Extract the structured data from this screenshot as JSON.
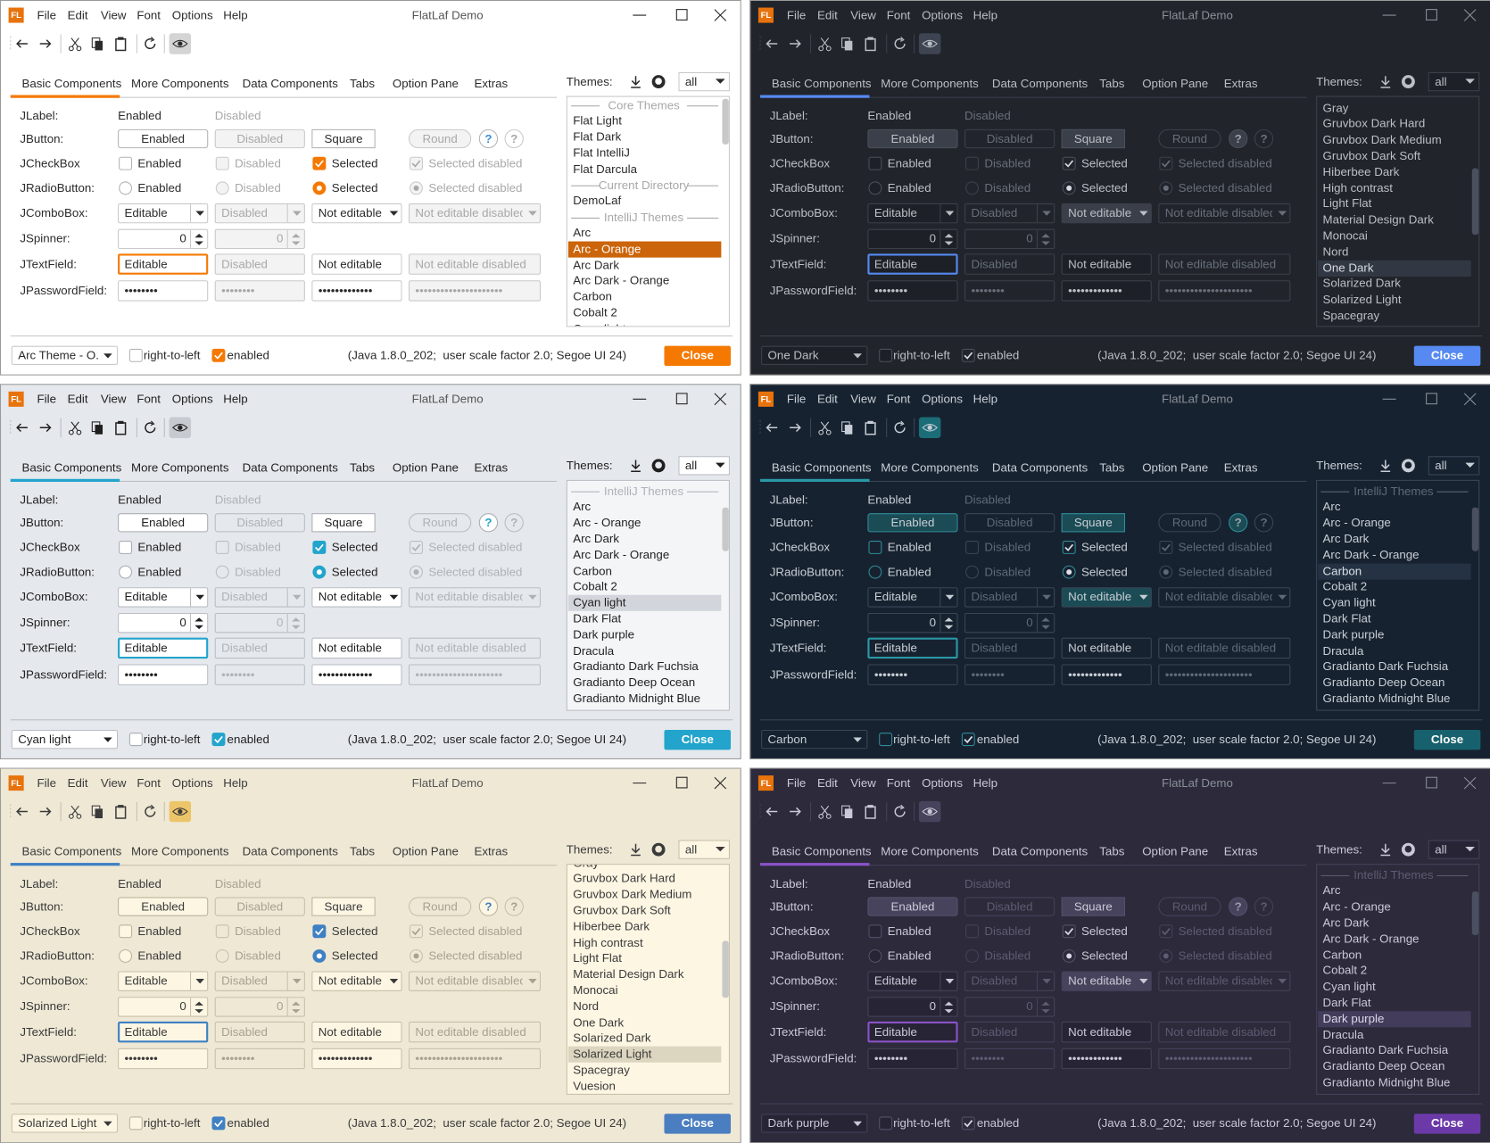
{
  "common": {
    "logo": "FL",
    "title": "FlatLaf Demo",
    "menu": [
      "File",
      "Edit",
      "View",
      "Font",
      "Options",
      "Help"
    ],
    "tabs": [
      "Basic Components",
      "More Components",
      "Data Components",
      "Tabs",
      "Option Pane",
      "Extras"
    ],
    "themes_label": "Themes:",
    "themes_filter": "all",
    "rows": [
      {
        "label": "JLabel:",
        "cells": [
          "Enabled",
          "Disabled"
        ]
      },
      {
        "label": "JButton:",
        "cells": [
          "Enabled",
          "Disabled",
          "Square",
          "Round",
          "?",
          "?"
        ]
      },
      {
        "label": "JCheckBox",
        "cells": [
          "Enabled",
          "Disabled",
          "Selected",
          "Selected disabled"
        ]
      },
      {
        "label": "JRadioButton:",
        "cells": [
          "Enabled",
          "Disabled",
          "Selected",
          "Selected disabled"
        ]
      },
      {
        "label": "JComboBox:",
        "cells": [
          "Editable",
          "Disabled",
          "Not editable",
          "Not editable disabled"
        ]
      },
      {
        "label": "JSpinner:",
        "cells": [
          0,
          0
        ]
      },
      {
        "label": "JTextField:",
        "cells": [
          "Editable",
          "Disabled",
          "Not editable",
          "Not editable disabled"
        ]
      },
      {
        "label": "JPasswordField:",
        "cells": [
          "••••••••",
          "••••••••",
          "•••••••••••••",
          "•••••••••••••••••••••"
        ]
      }
    ],
    "right_to_left": "right-to-left",
    "enabled": "enabled",
    "info": "(Java 1.8.0_202;  user scale factor 2.0; Segoe UI 24)",
    "close": "Close"
  },
  "windows": [
    {
      "theme": "Arc Theme - O...",
      "themes": [
        {
          "heading": "Core Themes"
        },
        {
          "name": "Flat Light"
        },
        {
          "name": "Flat Dark"
        },
        {
          "name": "Flat IntelliJ"
        },
        {
          "name": "Flat Darcula"
        },
        {
          "heading": "Current Directory"
        },
        {
          "name": "DemoLaf"
        },
        {
          "heading": "IntelliJ Themes"
        },
        {
          "name": "Arc"
        },
        {
          "name": "Arc - Orange",
          "selected": true
        },
        {
          "name": "Arc Dark"
        },
        {
          "name": "Arc Dark - Orange"
        },
        {
          "name": "Carbon"
        },
        {
          "name": "Cobalt 2"
        },
        {
          "name": "Cyan light"
        }
      ]
    },
    {
      "theme": "One Dark",
      "themes": [
        {
          "name": "Gray"
        },
        {
          "name": "Gruvbox Dark Hard"
        },
        {
          "name": "Gruvbox Dark Medium"
        },
        {
          "name": "Gruvbox Dark Soft"
        },
        {
          "name": "Hiberbee Dark"
        },
        {
          "name": "High contrast"
        },
        {
          "name": "Light Flat"
        },
        {
          "name": "Material Design Dark"
        },
        {
          "name": "Monocai"
        },
        {
          "name": "Nord"
        },
        {
          "name": "One Dark",
          "selected": true
        },
        {
          "name": "Solarized Dark"
        },
        {
          "name": "Solarized Light"
        },
        {
          "name": "Spacegray"
        }
      ]
    },
    {
      "theme": "Cyan light",
      "themes": [
        {
          "heading": "IntelliJ Themes"
        },
        {
          "name": "Arc"
        },
        {
          "name": "Arc - Orange"
        },
        {
          "name": "Arc Dark"
        },
        {
          "name": "Arc Dark - Orange"
        },
        {
          "name": "Carbon"
        },
        {
          "name": "Cobalt 2"
        },
        {
          "name": "Cyan light",
          "selected": true
        },
        {
          "name": "Dark Flat"
        },
        {
          "name": "Dark purple"
        },
        {
          "name": "Dracula"
        },
        {
          "name": "Gradianto Dark Fuchsia"
        },
        {
          "name": "Gradianto Deep Ocean"
        },
        {
          "name": "Gradianto Midnight Blue"
        }
      ]
    },
    {
      "theme": "Carbon",
      "themes": [
        {
          "heading": "IntelliJ Themes"
        },
        {
          "name": "Arc"
        },
        {
          "name": "Arc - Orange"
        },
        {
          "name": "Arc Dark"
        },
        {
          "name": "Arc Dark - Orange"
        },
        {
          "name": "Carbon",
          "selected": true
        },
        {
          "name": "Cobalt 2"
        },
        {
          "name": "Cyan light"
        },
        {
          "name": "Dark Flat"
        },
        {
          "name": "Dark purple"
        },
        {
          "name": "Dracula"
        },
        {
          "name": "Gradianto Dark Fuchsia"
        },
        {
          "name": "Gradianto Deep Ocean"
        },
        {
          "name": "Gradianto Midnight Blue"
        }
      ]
    },
    {
      "theme": "Solarized Light",
      "themes": [
        {
          "name": "Gray"
        },
        {
          "name": "Gruvbox Dark Hard"
        },
        {
          "name": "Gruvbox Dark Medium"
        },
        {
          "name": "Gruvbox Dark Soft"
        },
        {
          "name": "Hiberbee Dark"
        },
        {
          "name": "High contrast"
        },
        {
          "name": "Light Flat"
        },
        {
          "name": "Material Design Dark"
        },
        {
          "name": "Monocai"
        },
        {
          "name": "Nord"
        },
        {
          "name": "One Dark"
        },
        {
          "name": "Solarized Dark"
        },
        {
          "name": "Solarized Light",
          "selected": true
        },
        {
          "name": "Spacegray"
        },
        {
          "name": "Vuesion"
        }
      ]
    },
    {
      "theme": "Dark purple",
      "themes": [
        {
          "heading": "IntelliJ Themes"
        },
        {
          "name": "Arc"
        },
        {
          "name": "Arc - Orange"
        },
        {
          "name": "Arc Dark"
        },
        {
          "name": "Arc Dark - Orange"
        },
        {
          "name": "Carbon"
        },
        {
          "name": "Cobalt 2"
        },
        {
          "name": "Cyan light"
        },
        {
          "name": "Dark Flat"
        },
        {
          "name": "Dark purple",
          "selected": true
        },
        {
          "name": "Dracula"
        },
        {
          "name": "Gradianto Dark Fuchsia"
        },
        {
          "name": "Gradianto Deep Ocean"
        },
        {
          "name": "Gradianto Midnight Blue"
        }
      ]
    }
  ]
}
